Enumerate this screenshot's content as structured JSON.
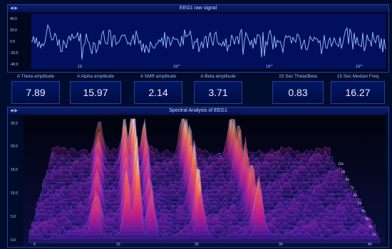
{
  "raw_signal": {
    "title": "EEG1 raw signal",
    "y_ticks": [
      "40.0",
      "20.0",
      "0.0",
      "-20.0",
      "-40.0"
    ],
    "x_ticks": [
      "1S",
      "1S°\"",
      "1S°\"",
      "1S°\""
    ]
  },
  "metrics": [
    {
      "label": "A Theta amplitude",
      "value": "7.89"
    },
    {
      "label": "A Alpha amplitude",
      "value": "15.97"
    },
    {
      "label": "A SMR amplitude",
      "value": "2.14"
    },
    {
      "label": "A Beta amplitude",
      "value": "3.71"
    },
    {
      "label": "15 Sec Theta/Beta",
      "value": "0.83"
    },
    {
      "label": "15 Sec Median Freq",
      "value": "16.27"
    }
  ],
  "spectral": {
    "title": "Spectral Analysis of EEG1",
    "y_ticks": [
      "25.0",
      "20.0",
      "15.0",
      "10.0",
      "5.0",
      "0.0"
    ],
    "depth_ticks": [
      "10s",
      "9s",
      "8s",
      "7s",
      "6s",
      "5s",
      "4s",
      "3s",
      "2s",
      "1s"
    ],
    "x_ticks": [
      "0",
      "10",
      "20",
      "30",
      "40"
    ]
  },
  "colors": {
    "background": "#000c2e",
    "trace": "#9ec2ff",
    "plot_bg": "#020f5e",
    "peak": "#ffe07a"
  }
}
